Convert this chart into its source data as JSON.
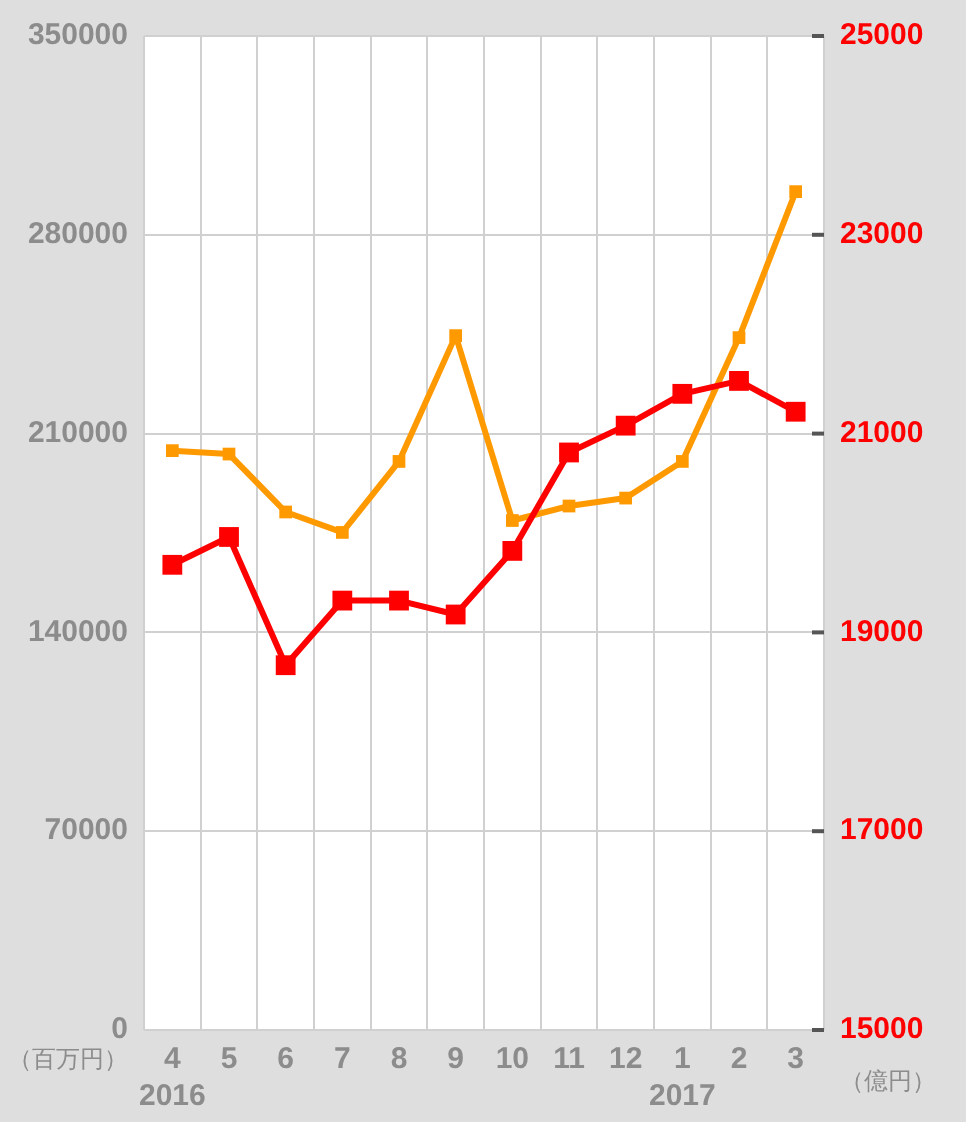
{
  "chart_data": {
    "type": "line",
    "ylabel": "（百万円）",
    "y2label": "（億円）",
    "categories": [
      "4",
      "5",
      "6",
      "7",
      "8",
      "9",
      "10",
      "11",
      "12",
      "1",
      "2",
      "3"
    ],
    "annotations": [
      "2016",
      "2017"
    ],
    "series": [
      {
        "color": "#ff9900",
        "values": [
          204000,
          202800,
          182400,
          175200,
          200200,
          244500,
          179400,
          184500,
          187300,
          200200,
          243800,
          295200
        ]
      },
      {
        "color": "#ff0000",
        "axis": "y2",
        "values": [
          19680,
          19960,
          18670,
          19320,
          19320,
          19180,
          19820,
          20810,
          21080,
          21400,
          21530,
          21220
        ]
      }
    ],
    "ylim": [
      0,
      350000
    ],
    "yticks": [
      0,
      70000,
      140000,
      210000,
      280000,
      350000
    ],
    "y2lim": [
      15000,
      25000
    ],
    "y2ticks": [
      15000,
      17000,
      19000,
      21000,
      23000,
      25000
    ],
    "grid": true,
    "legend": false,
    "marker": "square",
    "line_style": "solid"
  }
}
